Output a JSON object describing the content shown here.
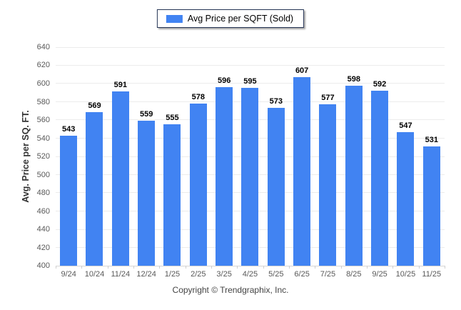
{
  "legend": {
    "label": "Avg Price per SQFT (Sold)",
    "swatch_color": "#4183f2"
  },
  "chart_data": {
    "type": "bar",
    "title": "",
    "categories": [
      "9/24",
      "10/24",
      "11/24",
      "12/24",
      "1/25",
      "2/25",
      "3/25",
      "4/25",
      "5/25",
      "6/25",
      "7/25",
      "8/25",
      "9/25",
      "10/25",
      "11/25"
    ],
    "series": [
      {
        "name": "Avg Price per SQFT (Sold)",
        "values": [
          543,
          569,
          591,
          559,
          555,
          578,
          596,
          595,
          573,
          607,
          577,
          598,
          592,
          547,
          531
        ],
        "color": "#4183f2"
      }
    ],
    "xlabel": "",
    "ylabel": "Avg. Price per SQ. FT.",
    "ylim": [
      400,
      640
    ],
    "ytick_step": 20,
    "grid": "horizontal",
    "legend_position": "top-center",
    "value_labels": true
  },
  "footer": {
    "copyright": "Copyright © Trendgraphix, Inc."
  },
  "colors": {
    "bar": "#4183f2",
    "gridline": "#ececec",
    "axis_line": "#d6d6d6",
    "tick_label": "#595959",
    "value_label": "#000000",
    "legend_border": "#253454"
  }
}
